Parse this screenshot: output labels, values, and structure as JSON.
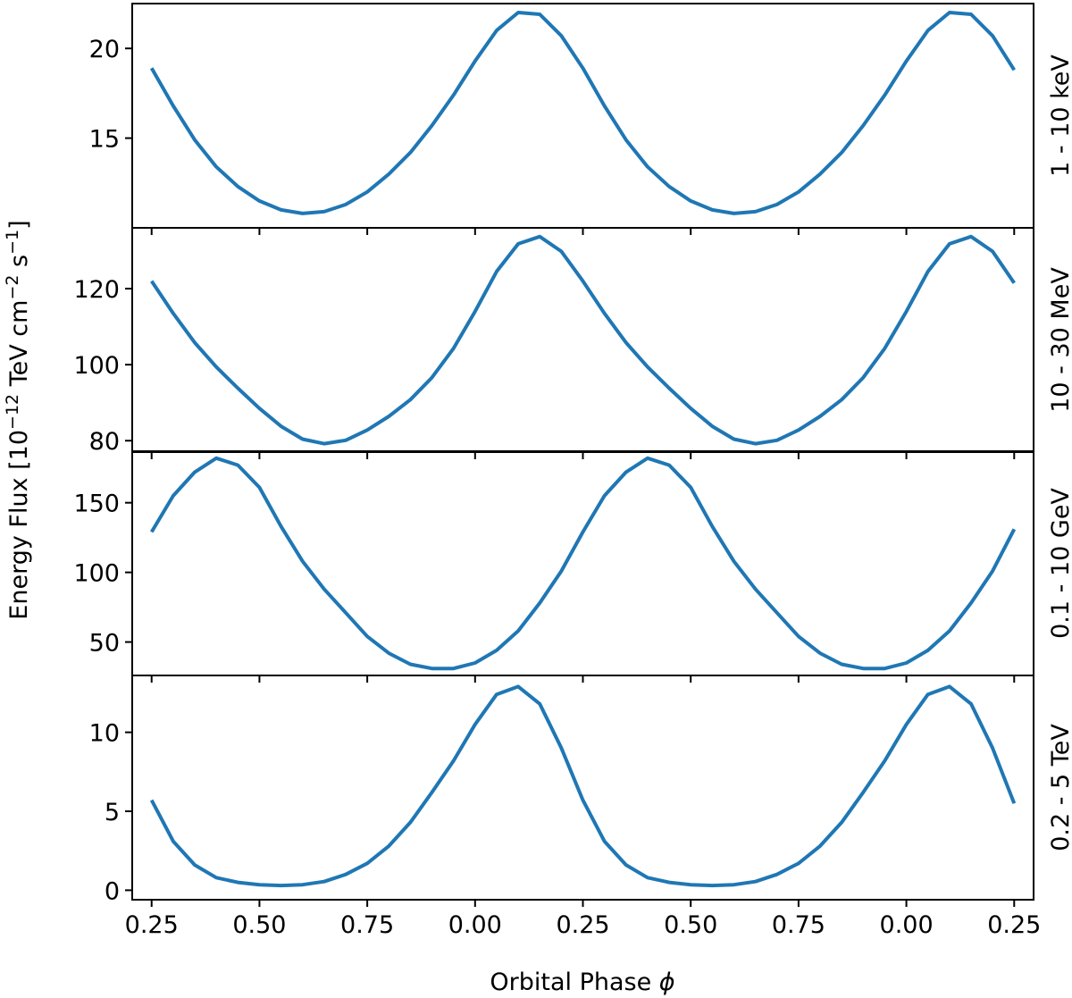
{
  "chart_data": {
    "type": "line",
    "ylabel": "Energy Flux [10^-12 TeV cm^-2 s^-1]",
    "xlabel": "Orbital Phase φ",
    "line_color": "#1f77b4",
    "x": [
      0.25,
      0.3,
      0.35,
      0.4,
      0.45,
      0.5,
      0.55,
      0.6,
      0.65,
      0.7,
      0.75,
      0.8,
      0.85,
      0.9,
      0.95,
      1.0,
      1.05,
      1.1,
      1.15,
      1.2,
      1.25,
      1.3,
      1.35,
      1.4,
      1.45,
      1.5,
      1.55,
      1.6,
      1.65,
      1.7,
      1.75,
      1.8,
      1.85,
      1.9,
      1.95,
      2.0,
      2.05,
      2.1,
      2.15,
      2.2,
      2.25
    ],
    "xlim": [
      0.205,
      2.295
    ],
    "x_ticks": [
      0.25,
      0.5,
      0.75,
      1.0,
      1.25,
      1.5,
      1.75,
      2.0,
      2.25
    ],
    "x_tick_labels": [
      "0.25",
      "0.50",
      "0.75",
      "0.00",
      "0.25",
      "0.50",
      "0.75",
      "0.00",
      "0.25"
    ],
    "panels": [
      {
        "label": "1 - 10 keV",
        "ylim": [
          10.0,
          22.5
        ],
        "y_ticks": [
          15,
          20
        ],
        "y_tick_labels": [
          "15",
          "20"
        ],
        "values": [
          18.9,
          16.8,
          14.9,
          13.4,
          12.3,
          11.5,
          11.0,
          10.8,
          10.9,
          11.3,
          12.0,
          13.0,
          14.2,
          15.7,
          17.4,
          19.3,
          21.0,
          22.0,
          21.9,
          20.7,
          18.9,
          16.8,
          14.9,
          13.4,
          12.3,
          11.5,
          11.0,
          10.8,
          10.9,
          11.3,
          12.0,
          13.0,
          14.2,
          15.7,
          17.4,
          19.3,
          21.0,
          22.0,
          21.9,
          20.7,
          18.8
        ]
      },
      {
        "label": "10 - 30 MeV",
        "ylim": [
          77.0,
          136.0
        ],
        "y_ticks": [
          80,
          100,
          120
        ],
        "y_tick_labels": [
          "80",
          "100",
          "120"
        ],
        "values": [
          122.0,
          113.5,
          105.8,
          99.4,
          93.8,
          88.5,
          83.8,
          80.4,
          79.2,
          80.1,
          82.8,
          86.4,
          90.8,
          96.6,
          104.3,
          114.0,
          124.5,
          131.8,
          133.7,
          129.8,
          122.0,
          113.5,
          105.8,
          99.4,
          93.8,
          88.5,
          83.8,
          80.4,
          79.2,
          80.1,
          82.8,
          86.4,
          90.8,
          96.6,
          104.3,
          114.0,
          124.5,
          131.8,
          133.7,
          129.8,
          121.5
        ]
      },
      {
        "label": "0.1 - 10 GeV",
        "ylim": [
          26.0,
          187.0
        ],
        "y_ticks": [
          50,
          100,
          150
        ],
        "y_tick_labels": [
          "50",
          "100",
          "150"
        ],
        "values": [
          129,
          155,
          172,
          182,
          177,
          161,
          133,
          108,
          88,
          71,
          54,
          42,
          34,
          31,
          31,
          35,
          44,
          58,
          78,
          101,
          129,
          155,
          172,
          182,
          177,
          161,
          133,
          108,
          88,
          71,
          54,
          42,
          34,
          31,
          31,
          35,
          44,
          58,
          78,
          101,
          131
        ]
      },
      {
        "label": "0.2 - 5 TeV",
        "ylim": [
          -0.6,
          13.6
        ],
        "y_ticks": [
          0,
          5,
          10
        ],
        "y_tick_labels": [
          "0",
          "5",
          "10"
        ],
        "values": [
          5.7,
          3.1,
          1.6,
          0.8,
          0.5,
          0.35,
          0.3,
          0.35,
          0.55,
          1.0,
          1.7,
          2.8,
          4.3,
          6.2,
          8.2,
          10.5,
          12.4,
          12.9,
          11.8,
          9.0,
          5.7,
          3.1,
          1.6,
          0.8,
          0.5,
          0.35,
          0.3,
          0.35,
          0.55,
          1.0,
          1.7,
          2.8,
          4.3,
          6.2,
          8.2,
          10.5,
          12.4,
          12.9,
          11.8,
          9.0,
          5.5
        ]
      }
    ]
  }
}
